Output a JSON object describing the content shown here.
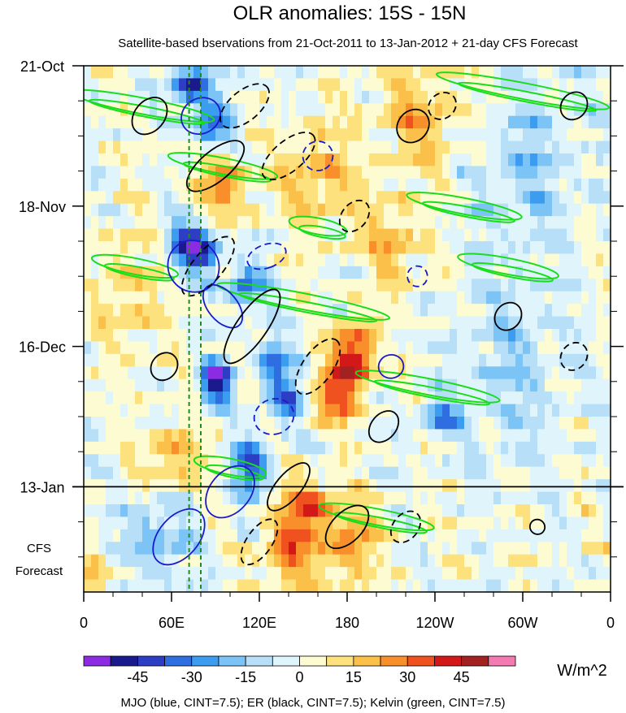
{
  "chart_data": {
    "type": "heatmap",
    "title": "OLR anomalies: 15S - 15N",
    "subtitle": "Satellite-based bservations from 21-Oct-2011 to 13-Jan-2012 + 21-day CFS Forecast",
    "x_ticks": [
      "0",
      "60E",
      "120E",
      "180",
      "120W",
      "60W",
      "0"
    ],
    "x_tick_lons": [
      0,
      60,
      120,
      180,
      240,
      300,
      360
    ],
    "xlim": [
      0,
      360
    ],
    "y_ticks": [
      "21-Oct",
      "18-Nov",
      "16-Dec",
      "13-Jan"
    ],
    "y_tick_days": [
      0,
      28,
      56,
      84
    ],
    "ylim": [
      0,
      105
    ],
    "forecast_label_line1": "CFS",
    "forecast_label_line2": "Forecast",
    "observation_end_day": 84,
    "colorbar": {
      "ticks": [
        "-45",
        "-30",
        "-15",
        "0",
        "15",
        "30",
        "45"
      ],
      "tick_values": [
        -45,
        -30,
        -15,
        0,
        15,
        30,
        45
      ],
      "unit": "W/m^2",
      "levels": [
        -52.5,
        -45,
        -37.5,
        -30,
        -22.5,
        -15,
        -7.5,
        0,
        7.5,
        15,
        22.5,
        30,
        37.5,
        45,
        52.5
      ],
      "colors": [
        "#8b2be2",
        "#1a1a8c",
        "#2d3ec4",
        "#2f6ee0",
        "#3b9cf0",
        "#7cc4f5",
        "#b7e0f8",
        "#e0f4fb",
        "#fdfbd2",
        "#fde17c",
        "#fbc04a",
        "#f88f2b",
        "#f0521f",
        "#d21818",
        "#a32121",
        "#f47ab2"
      ]
    },
    "vertical_lines_lon": [
      72,
      80
    ],
    "footer": "MJO (blue, CINT=7.5); ER (black, CINT=7.5); Kelvin (green, CINT=7.5)",
    "contour_sets": [
      {
        "kind": "MJO",
        "color": "#1a1acc"
      },
      {
        "kind": "ER",
        "color": "#000000"
      },
      {
        "kind": "Kelvin",
        "color": "#19dd19"
      }
    ]
  }
}
